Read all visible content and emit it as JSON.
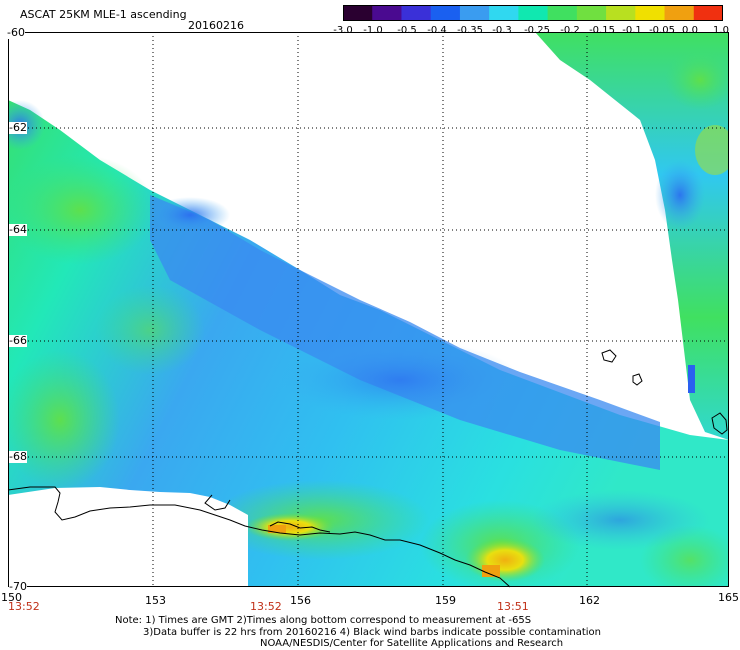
{
  "header": {
    "title": "ASCAT 25KM MLE-1 ascending",
    "date": "20160216"
  },
  "colorbar": {
    "ticks": [
      "-3.0",
      "-1.0",
      "-0.5",
      "-0.4",
      "-0.35",
      "-0.3",
      "-0.25",
      "-0.2",
      "-0.15",
      "-0.1",
      "-0.05",
      "0.0",
      "1.0"
    ],
    "colors": [
      "#2a0030",
      "#4a0a90",
      "#3a30d8",
      "#1a60f0",
      "#3a9cf0",
      "#30d8f0",
      "#10e8b0",
      "#40e060",
      "#70e040",
      "#b8e020",
      "#f0e000",
      "#f0a010",
      "#f03010"
    ]
  },
  "axes": {
    "lat_labels": [
      "-60",
      "-62",
      "-64",
      "-66",
      "-68",
      "-70"
    ],
    "lon_labels": [
      "150",
      "153",
      "156",
      "159",
      "162",
      "165"
    ],
    "time_labels": [
      "13:52",
      "13:52",
      "13:51"
    ]
  },
  "notes": {
    "line1": "Note: 1) Times are GMT 2)Times along bottom correspond to measurement at -65S",
    "line2": "3)Data buffer is 22 hrs from 20160216 4) Black wind barbs indicate possible contamination",
    "line3": "NOAA/NESDIS/Center for Satellite Applications and Research"
  },
  "colors": {
    "background": "#ffffff",
    "time_label": "#c03018"
  }
}
